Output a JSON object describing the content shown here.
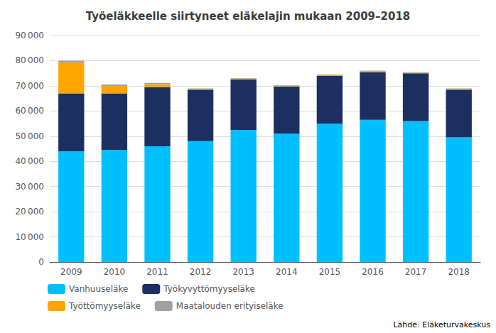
{
  "chart_data": {
    "type": "bar",
    "title": "Työeläkkeelle siirtyneet eläkelajin mukaan 2009–2018",
    "categories": [
      "2009",
      "2010",
      "2011",
      "2012",
      "2013",
      "2014",
      "2015",
      "2016",
      "2017",
      "2018"
    ],
    "series": [
      {
        "name": "Vanhuuseläke",
        "color": "#00BFFF",
        "values": [
          44000,
          44500,
          46000,
          48000,
          52500,
          51000,
          55000,
          56500,
          56000,
          49500
        ]
      },
      {
        "name": "Työkyvyttömyyseläke",
        "color": "#1B3060",
        "values": [
          23000,
          22500,
          23500,
          20500,
          20000,
          18700,
          19000,
          19000,
          19000,
          19000
        ]
      },
      {
        "name": "Työttömyyseläke",
        "color": "#FFA500",
        "values": [
          12200,
          3000,
          1200,
          200,
          200,
          200,
          200,
          200,
          200,
          200
        ]
      },
      {
        "name": "Maatalouden erityiseläke",
        "color": "#A0A0A0",
        "values": [
          800,
          500,
          500,
          300,
          300,
          300,
          300,
          300,
          300,
          300
        ]
      }
    ],
    "stacked": true,
    "ylim": [
      0,
      90000
    ],
    "yticks": [
      0,
      {
        "value": 10000,
        "label": "10 000"
      },
      {
        "value": 20000,
        "label": "20 000"
      },
      {
        "value": 30000,
        "label": "30 000"
      },
      {
        "value": 40000,
        "label": "40 000"
      },
      {
        "value": 50000,
        "label": "50 000"
      },
      {
        "value": 60000,
        "label": "60 000"
      },
      {
        "value": 70000,
        "label": "70 000"
      },
      {
        "value": 80000,
        "label": "80 000"
      },
      {
        "value": 90000,
        "label": "90 000"
      }
    ],
    "grid": true,
    "legend": "bottom",
    "annotation": "Lähde: Eläketurvakeskus"
  }
}
